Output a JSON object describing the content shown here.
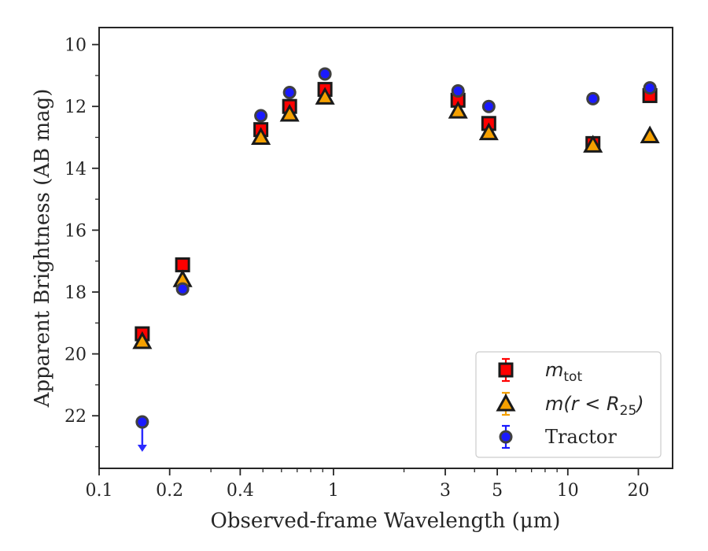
{
  "chart_data": {
    "type": "scatter",
    "title": "",
    "xlabel": "Observed-frame Wavelength (μm)",
    "ylabel": "Apparent Brightness (AB mag)",
    "xscale": "log",
    "xlim": [
      0.1,
      28
    ],
    "ylim": [
      23.7,
      9.45
    ],
    "y_inverted": true,
    "x_ticks": [
      0.1,
      0.2,
      0.4,
      1,
      3,
      5,
      10,
      20
    ],
    "x_tick_labels": [
      "0.1",
      "0.2",
      "0.4",
      "1",
      "3",
      "5",
      "10",
      "20"
    ],
    "y_ticks": [
      10,
      12,
      14,
      16,
      18,
      20,
      22
    ],
    "y_tick_labels": [
      "10",
      "12",
      "14",
      "16",
      "18",
      "20",
      "22"
    ],
    "grid": false,
    "legend": "lower-right",
    "series": [
      {
        "name": "m_tot",
        "legend_main": "m",
        "legend_sub": "tot",
        "marker": "square",
        "color": "#ff0000",
        "edge_color": "#1a1a1a",
        "points": [
          {
            "x": 0.1528,
            "y": 19.35
          },
          {
            "x": 0.2271,
            "y": 17.12
          },
          {
            "x": 0.49,
            "y": 12.75
          },
          {
            "x": 0.65,
            "y": 12.0
          },
          {
            "x": 0.92,
            "y": 11.45
          },
          {
            "x": 3.4,
            "y": 11.8
          },
          {
            "x": 4.6,
            "y": 12.55
          },
          {
            "x": 12.8,
            "y": 13.2
          },
          {
            "x": 22.4,
            "y": 11.65
          }
        ]
      },
      {
        "name": "m(r < R25)",
        "legend_main": "m(r < R",
        "legend_sub": "25",
        "legend_tail": ")",
        "marker": "triangle",
        "color": "#f5a000",
        "edge_color": "#1a1a1a",
        "points": [
          {
            "x": 0.1528,
            "y": 19.6
          },
          {
            "x": 0.2271,
            "y": 17.6
          },
          {
            "x": 0.49,
            "y": 13.0
          },
          {
            "x": 0.65,
            "y": 12.25
          },
          {
            "x": 0.92,
            "y": 11.7
          },
          {
            "x": 3.4,
            "y": 12.15
          },
          {
            "x": 4.6,
            "y": 12.85
          },
          {
            "x": 12.8,
            "y": 13.25
          },
          {
            "x": 22.4,
            "y": 12.95
          }
        ]
      },
      {
        "name": "Tractor",
        "marker": "circle",
        "color": "#1a1aff",
        "edge_color": "#404040",
        "points": [
          {
            "x": 0.1528,
            "y": 22.2,
            "upper_limit": true
          },
          {
            "x": 0.2271,
            "y": 17.9
          },
          {
            "x": 0.49,
            "y": 12.3
          },
          {
            "x": 0.65,
            "y": 11.55
          },
          {
            "x": 0.92,
            "y": 10.95
          },
          {
            "x": 3.4,
            "y": 11.5
          },
          {
            "x": 4.6,
            "y": 12.0
          },
          {
            "x": 12.8,
            "y": 11.75
          },
          {
            "x": 22.4,
            "y": 11.4
          }
        ]
      }
    ]
  }
}
